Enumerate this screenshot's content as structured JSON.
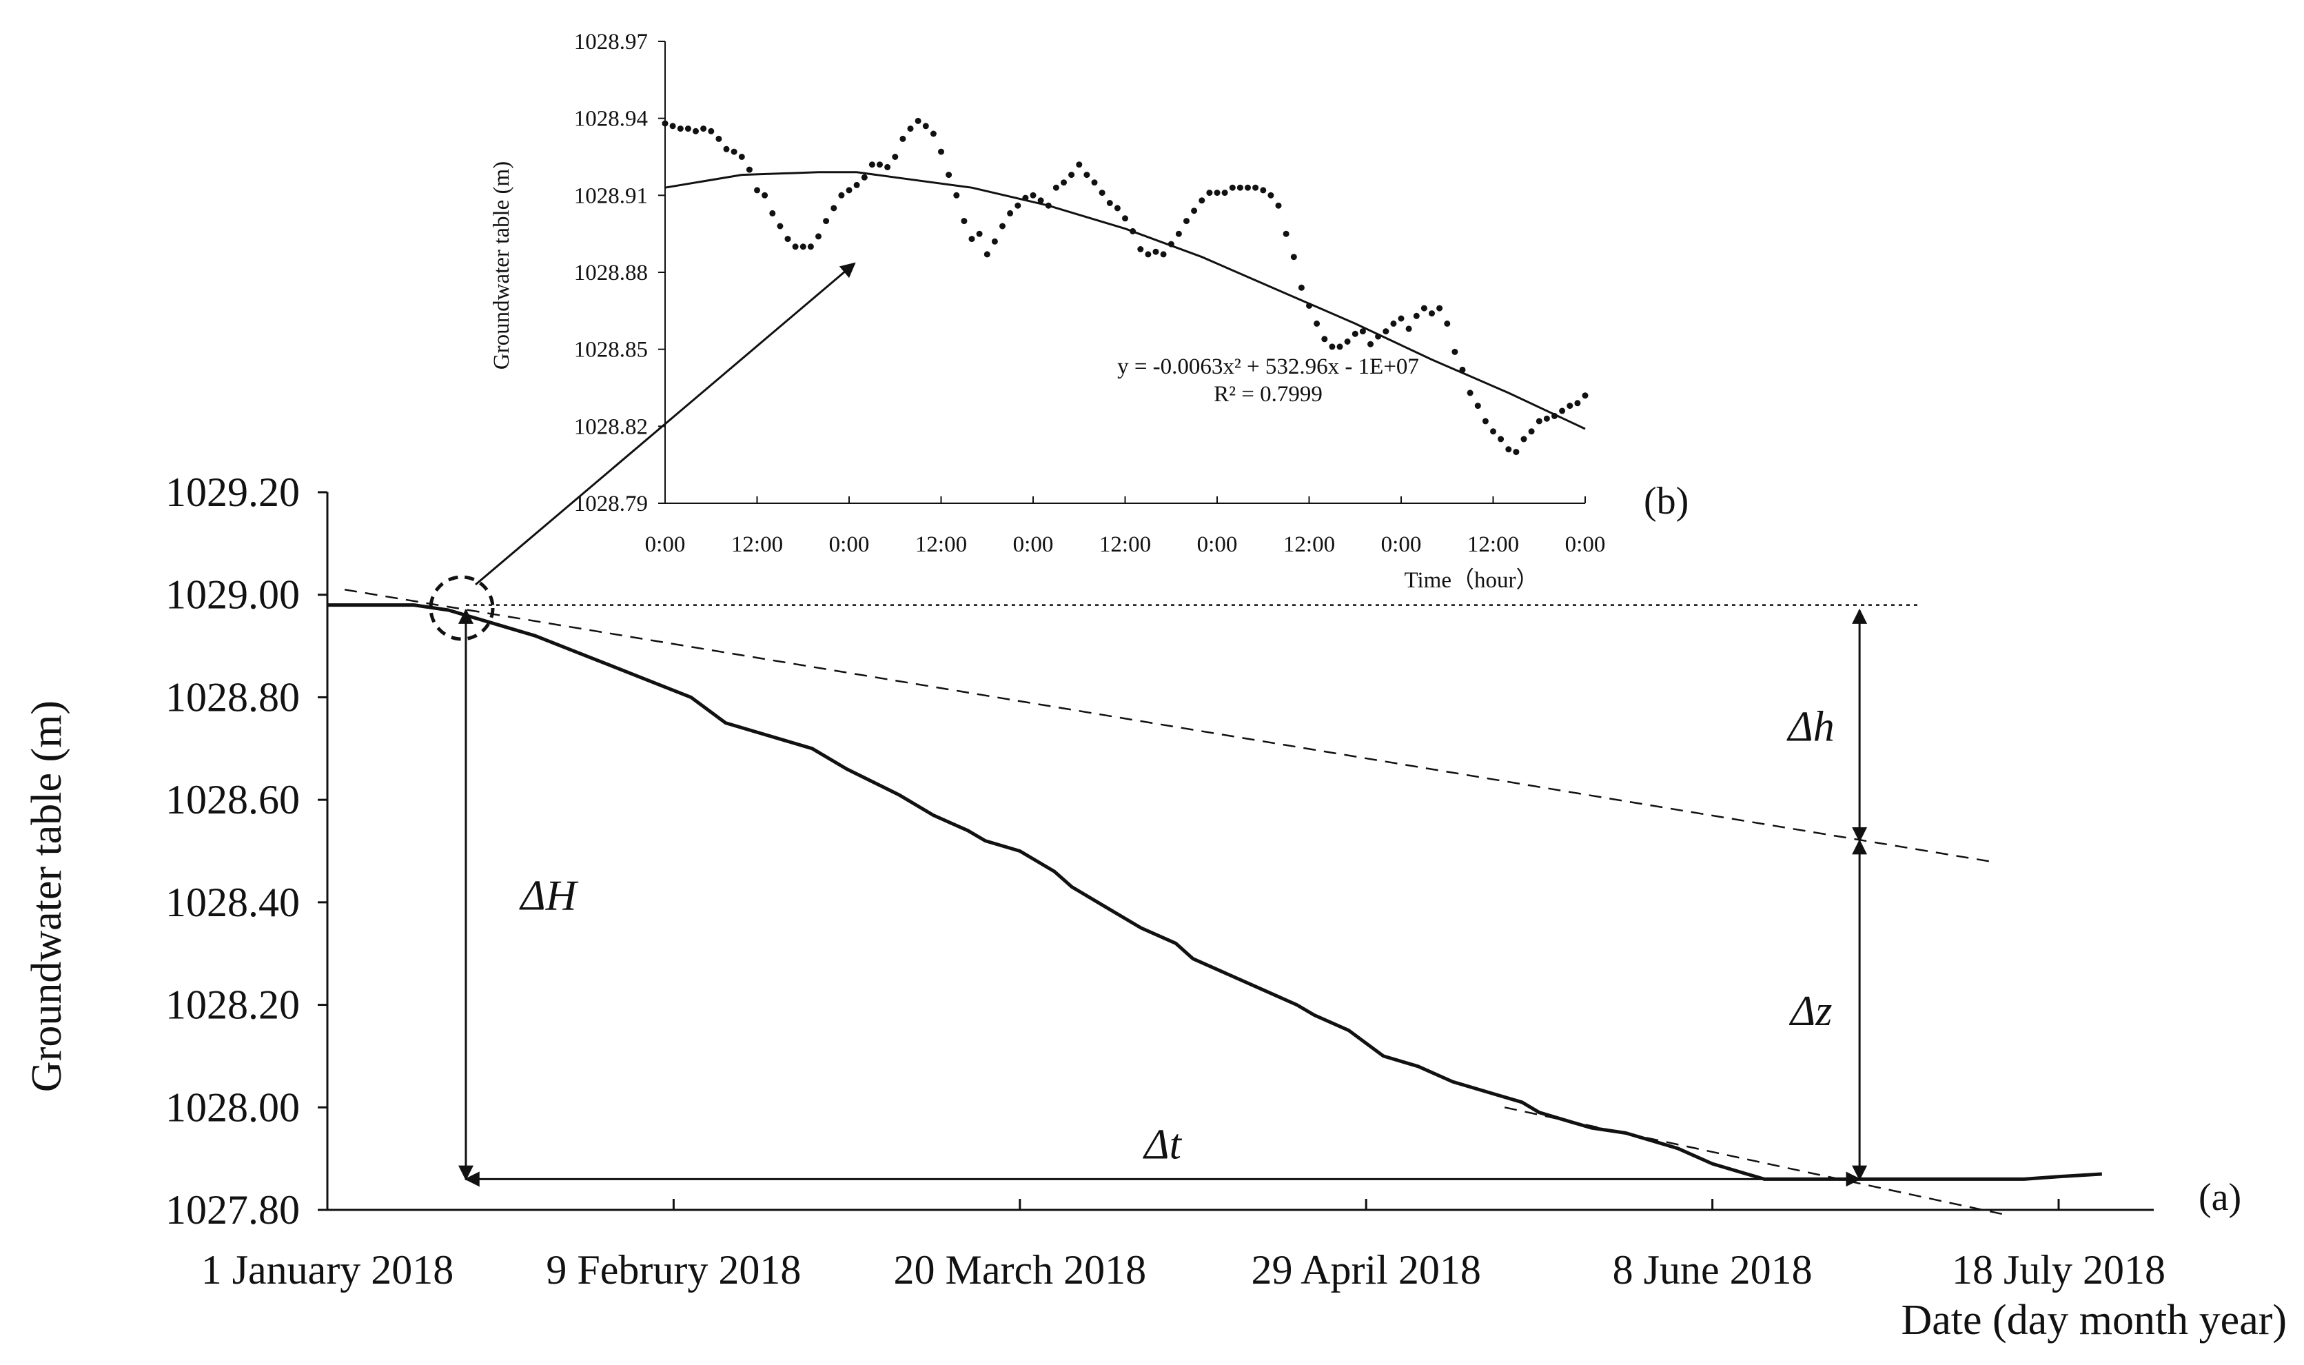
{
  "chart_data": [
    {
      "id": "main",
      "type": "line",
      "panel_label": "(a)",
      "title": "",
      "xlabel": "Date (day month year)",
      "ylabel": "Groundwater table (m)",
      "ylim": [
        1027.8,
        1029.2
      ],
      "y_ticks": [
        "1029.20",
        "1029.00",
        "1028.80",
        "1028.60",
        "1028.40",
        "1028.20",
        "1028.00",
        "1027.80"
      ],
      "x_tick_labels": [
        "1 January 2018",
        "9 Februry 2018",
        "20 March 2018",
        "29 April 2018",
        "8 June 2018",
        "18 July 2018"
      ],
      "x_tick_day_index": [
        0,
        40,
        80,
        120,
        160,
        200
      ],
      "xlim_days": [
        0,
        205
      ],
      "grid": false,
      "series": [
        {
          "x_day": [
            0,
            10,
            14,
            16,
            20,
            24,
            30,
            36,
            42,
            46,
            50,
            56,
            60,
            66,
            70,
            74,
            76,
            80,
            84,
            86,
            90,
            94,
            98,
            100,
            104,
            108,
            112,
            114,
            118,
            122,
            126,
            130,
            134,
            138,
            140,
            142,
            146,
            150,
            154,
            156,
            160,
            164,
            166,
            170,
            174,
            178,
            180,
            186,
            192,
            196,
            200,
            205
          ],
          "values": [
            1028.98,
            1028.98,
            1028.97,
            1028.96,
            1028.94,
            1028.92,
            1028.88,
            1028.84,
            1028.8,
            1028.75,
            1028.73,
            1028.7,
            1028.66,
            1028.61,
            1028.57,
            1028.54,
            1028.52,
            1028.5,
            1028.46,
            1028.43,
            1028.39,
            1028.35,
            1028.32,
            1028.29,
            1028.26,
            1028.23,
            1028.2,
            1028.18,
            1028.15,
            1028.1,
            1028.08,
            1028.05,
            1028.03,
            1028.01,
            1027.99,
            1027.98,
            1027.96,
            1027.95,
            1027.93,
            1027.92,
            1027.89,
            1027.87,
            1027.86,
            1027.86,
            1027.86,
            1027.86,
            1027.86,
            1027.86,
            1027.86,
            1027.86,
            1027.865,
            1027.87
          ]
        }
      ],
      "reference_lines": [
        {
          "style": "dotted",
          "x_day": [
            16,
            184
          ],
          "values": [
            1028.98,
            1028.98
          ]
        },
        {
          "style": "dashed",
          "x_day": [
            2,
            192
          ],
          "values": [
            1029.01,
            1028.48
          ]
        },
        {
          "style": "dashed",
          "x_day": [
            136,
            194
          ],
          "values": [
            1028.0,
            1027.79
          ]
        }
      ],
      "annotations": [
        {
          "text": "ΔH",
          "kind": "vertical-arrow",
          "x_day": 16,
          "from": 1028.97,
          "to": 1027.86
        },
        {
          "text": "Δt",
          "kind": "horizontal-arrow",
          "y": 1027.86,
          "from_day": 16,
          "to_day": 177
        },
        {
          "text": "Δh",
          "kind": "vertical-arrow",
          "x_day": 177,
          "from": 1028.97,
          "to": 1028.52
        },
        {
          "text": "Δz",
          "kind": "vertical-arrow",
          "x_day": 177,
          "from": 1028.52,
          "to": 1027.86
        }
      ]
    },
    {
      "id": "inset",
      "type": "scatter",
      "panel_label": "(b)",
      "title": "",
      "xlabel": "Time（hour）",
      "ylabel": "Groundwater table (m)",
      "ylim": [
        1028.79,
        1028.97
      ],
      "y_ticks": [
        "1028.97",
        "1028.94",
        "1028.91",
        "1028.88",
        "1028.85",
        "1028.82",
        "1028.79"
      ],
      "x_tick_labels": [
        "0:00",
        "12:00",
        "0:00",
        "12:00",
        "0:00",
        "12:00",
        "0:00",
        "12:00",
        "0:00",
        "12:00",
        "0:00"
      ],
      "xlim_hours": [
        0,
        120
      ],
      "grid": false,
      "x_hour": [
        0,
        1,
        2,
        3,
        4,
        5,
        6,
        7,
        8,
        9,
        10,
        11,
        12,
        13,
        14,
        15,
        16,
        17,
        18,
        19,
        20,
        21,
        22,
        23,
        24,
        25,
        26,
        27,
        28,
        29,
        30,
        31,
        32,
        33,
        34,
        35,
        36,
        37,
        38,
        39,
        40,
        41,
        42,
        43,
        44,
        45,
        46,
        47,
        48,
        49,
        50,
        51,
        52,
        53,
        54,
        55,
        56,
        57,
        58,
        59,
        60,
        61,
        62,
        63,
        64,
        65,
        66,
        67,
        68,
        69,
        70,
        71,
        72,
        73,
        74,
        75,
        76,
        77,
        78,
        79,
        80,
        81,
        82,
        83,
        84,
        85,
        86,
        87,
        88,
        89,
        90,
        91,
        92,
        93,
        94,
        95,
        96,
        97,
        98,
        99,
        100,
        101,
        102,
        103,
        104,
        105,
        106,
        107,
        108,
        109,
        110,
        111,
        112,
        113,
        114,
        115,
        116,
        117,
        118,
        119,
        120
      ],
      "values": [
        1028.938,
        1028.937,
        1028.936,
        1028.936,
        1028.935,
        1028.936,
        1028.935,
        1028.932,
        1028.928,
        1028.927,
        1028.925,
        1028.92,
        1028.912,
        1028.91,
        1028.903,
        1028.898,
        1028.893,
        1028.89,
        1028.89,
        1028.89,
        1028.894,
        1028.9,
        1028.905,
        1028.91,
        1028.912,
        1028.914,
        1028.917,
        1028.922,
        1028.922,
        1028.921,
        1028.925,
        1028.932,
        1028.936,
        1028.939,
        1028.937,
        1028.934,
        1028.927,
        1028.918,
        1028.91,
        1028.9,
        1028.893,
        1028.895,
        1028.887,
        1028.892,
        1028.898,
        1028.903,
        1028.906,
        1028.909,
        1028.91,
        1028.908,
        1028.906,
        1028.913,
        1028.915,
        1028.918,
        1028.922,
        1028.918,
        1028.915,
        1028.911,
        1028.907,
        1028.905,
        1028.901,
        1028.896,
        1028.889,
        1028.887,
        1028.888,
        1028.887,
        1028.891,
        1028.895,
        1028.9,
        1028.904,
        1028.908,
        1028.911,
        1028.911,
        1028.911,
        1028.913,
        1028.913,
        1028.913,
        1028.913,
        1028.912,
        1028.91,
        1028.906,
        1028.895,
        1028.886,
        1028.874,
        1028.867,
        1028.86,
        1028.854,
        1028.851,
        1028.851,
        1028.853,
        1028.856,
        1028.857,
        1028.852,
        1028.855,
        1028.857,
        1028.86,
        1028.862,
        1028.858,
        1028.863,
        1028.866,
        1028.864,
        1028.866,
        1028.86,
        1028.849,
        1028.842,
        1028.833,
        1028.828,
        1028.822,
        1028.818,
        1028.815,
        1028.811,
        1028.81,
        1028.815,
        1028.818,
        1028.822,
        1028.823,
        1028.824,
        1028.826,
        1028.828,
        1028.829,
        1028.832
      ],
      "trendline": {
        "type": "polynomial-2",
        "equation": "y = -0.0063x² + 532.96x - 1E+07",
        "r_squared": "R² = 0.7999",
        "x_hour": [
          0,
          10,
          20,
          25,
          30,
          40,
          50,
          60,
          70,
          80,
          90,
          100,
          110,
          120
        ],
        "values": [
          1028.913,
          1028.918,
          1028.919,
          1028.919,
          1028.917,
          1028.913,
          1028.906,
          1028.897,
          1028.886,
          1028.873,
          1028.86,
          1028.846,
          1028.833,
          1028.819
        ]
      }
    }
  ]
}
